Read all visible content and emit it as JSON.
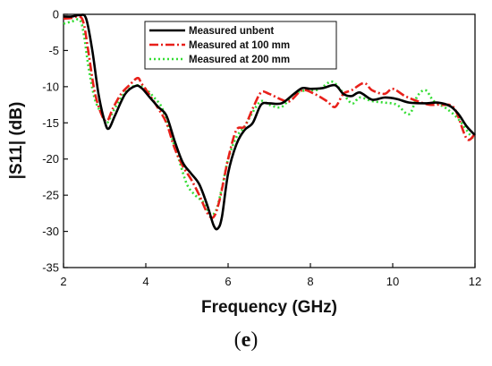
{
  "chart_data": {
    "type": "line",
    "xlabel": "Frequency (GHz)",
    "ylabel": "|S11| (dB)",
    "xlim": [
      2,
      12
    ],
    "ylim": [
      -35,
      0
    ],
    "x_ticks": [
      2,
      4,
      6,
      8,
      10,
      12
    ],
    "y_ticks": [
      0,
      -5,
      -10,
      -15,
      -20,
      -25,
      -30,
      -35
    ],
    "x_tick_labels": [
      "2",
      "4",
      "6",
      "8",
      "10",
      "12"
    ],
    "y_tick_labels": [
      "0",
      "-5",
      "-10",
      "-15",
      "-20",
      "-25",
      "-30",
      "-35"
    ],
    "grid": false,
    "legend_position": "top-center",
    "series": [
      {
        "name": "Measured unbent",
        "color": "#000000",
        "style": "solid",
        "points": [
          [
            2.0,
            -0.3
          ],
          [
            2.2,
            -0.3
          ],
          [
            2.4,
            -0.1
          ],
          [
            2.55,
            -0.6
          ],
          [
            2.7,
            -5
          ],
          [
            2.85,
            -11
          ],
          [
            3.0,
            -14.8
          ],
          [
            3.1,
            -15.8
          ],
          [
            3.25,
            -14
          ],
          [
            3.5,
            -11
          ],
          [
            3.75,
            -9.9
          ],
          [
            3.9,
            -10.2
          ],
          [
            4.1,
            -11.5
          ],
          [
            4.3,
            -12.8
          ],
          [
            4.5,
            -14
          ],
          [
            4.7,
            -17.5
          ],
          [
            4.9,
            -20.5
          ],
          [
            5.1,
            -22
          ],
          [
            5.3,
            -23.5
          ],
          [
            5.5,
            -26.5
          ],
          [
            5.65,
            -29.2
          ],
          [
            5.75,
            -29.6
          ],
          [
            5.85,
            -28
          ],
          [
            6.0,
            -22
          ],
          [
            6.2,
            -18
          ],
          [
            6.4,
            -16
          ],
          [
            6.6,
            -15
          ],
          [
            6.8,
            -12.5
          ],
          [
            7.0,
            -12.3
          ],
          [
            7.3,
            -12.3
          ],
          [
            7.6,
            -11
          ],
          [
            7.8,
            -10.2
          ],
          [
            8.0,
            -10.3
          ],
          [
            8.3,
            -10.2
          ],
          [
            8.6,
            -9.8
          ],
          [
            8.8,
            -11
          ],
          [
            9.0,
            -11.3
          ],
          [
            9.2,
            -10.8
          ],
          [
            9.5,
            -11.8
          ],
          [
            9.8,
            -11.5
          ],
          [
            10.1,
            -11.7
          ],
          [
            10.4,
            -12.2
          ],
          [
            10.8,
            -12.3
          ],
          [
            11.1,
            -12.2
          ],
          [
            11.4,
            -12.7
          ],
          [
            11.6,
            -13.8
          ],
          [
            11.8,
            -15.5
          ],
          [
            12.0,
            -16.7
          ]
        ]
      },
      {
        "name": "Measured at 100 mm",
        "color": "#e8201a",
        "style": "dashdot",
        "points": [
          [
            2.0,
            -0.6
          ],
          [
            2.2,
            -0.5
          ],
          [
            2.4,
            -0.3
          ],
          [
            2.5,
            -1.5
          ],
          [
            2.6,
            -5
          ],
          [
            2.75,
            -10.5
          ],
          [
            2.9,
            -13.5
          ],
          [
            3.05,
            -14.8
          ],
          [
            3.2,
            -13
          ],
          [
            3.4,
            -11
          ],
          [
            3.6,
            -9.8
          ],
          [
            3.8,
            -8.8
          ],
          [
            3.9,
            -9.6
          ],
          [
            4.1,
            -11.2
          ],
          [
            4.3,
            -13
          ],
          [
            4.5,
            -15
          ],
          [
            4.7,
            -18.5
          ],
          [
            4.9,
            -21
          ],
          [
            5.1,
            -22.8
          ],
          [
            5.3,
            -25
          ],
          [
            5.5,
            -27.5
          ],
          [
            5.65,
            -28
          ],
          [
            5.8,
            -25.5
          ],
          [
            6.0,
            -20
          ],
          [
            6.2,
            -16
          ],
          [
            6.4,
            -15.5
          ],
          [
            6.6,
            -13
          ],
          [
            6.8,
            -10.8
          ],
          [
            7.0,
            -11
          ],
          [
            7.3,
            -11.8
          ],
          [
            7.5,
            -12
          ],
          [
            7.8,
            -10.5
          ],
          [
            8.1,
            -11
          ],
          [
            8.4,
            -12
          ],
          [
            8.6,
            -12.8
          ],
          [
            8.8,
            -11
          ],
          [
            9.0,
            -10.5
          ],
          [
            9.3,
            -9.5
          ],
          [
            9.5,
            -10.5
          ],
          [
            9.8,
            -11
          ],
          [
            10.0,
            -10.3
          ],
          [
            10.3,
            -11.3
          ],
          [
            10.6,
            -12
          ],
          [
            10.9,
            -12.5
          ],
          [
            11.2,
            -12.5
          ],
          [
            11.5,
            -13
          ],
          [
            11.8,
            -17.2
          ],
          [
            12.0,
            -16.5
          ]
        ]
      },
      {
        "name": "Measured at 200 mm",
        "color": "#33dd33",
        "style": "dotted",
        "points": [
          [
            2.0,
            -1.3
          ],
          [
            2.2,
            -1.0
          ],
          [
            2.4,
            -0.8
          ],
          [
            2.5,
            -3
          ],
          [
            2.6,
            -7
          ],
          [
            2.75,
            -11.5
          ],
          [
            2.9,
            -13.5
          ],
          [
            3.05,
            -15
          ],
          [
            3.2,
            -13.5
          ],
          [
            3.4,
            -11.5
          ],
          [
            3.6,
            -10.3
          ],
          [
            3.8,
            -9.8
          ],
          [
            4.0,
            -10.3
          ],
          [
            4.2,
            -11.5
          ],
          [
            4.4,
            -13
          ],
          [
            4.6,
            -16.5
          ],
          [
            4.8,
            -20
          ],
          [
            5.0,
            -23.5
          ],
          [
            5.2,
            -25
          ],
          [
            5.4,
            -26
          ],
          [
            5.55,
            -27.5
          ],
          [
            5.7,
            -27.2
          ],
          [
            5.85,
            -24
          ],
          [
            6.0,
            -20
          ],
          [
            6.2,
            -17
          ],
          [
            6.4,
            -15.5
          ],
          [
            6.6,
            -13.5
          ],
          [
            6.8,
            -12
          ],
          [
            7.0,
            -12.5
          ],
          [
            7.3,
            -12.8
          ],
          [
            7.6,
            -11
          ],
          [
            7.9,
            -10.5
          ],
          [
            8.2,
            -10.4
          ],
          [
            8.5,
            -9.3
          ],
          [
            8.7,
            -10.2
          ],
          [
            9.0,
            -12.3
          ],
          [
            9.2,
            -11.5
          ],
          [
            9.5,
            -12
          ],
          [
            9.8,
            -12.2
          ],
          [
            10.1,
            -12.5
          ],
          [
            10.4,
            -13.8
          ],
          [
            10.6,
            -11.3
          ],
          [
            10.8,
            -10.5
          ],
          [
            11.0,
            -12
          ],
          [
            11.3,
            -13
          ],
          [
            11.6,
            -14.5
          ],
          [
            11.9,
            -16.8
          ],
          [
            12.0,
            -17
          ]
        ]
      }
    ]
  },
  "caption": {
    "open": "(",
    "letter": "e",
    "close": ")"
  }
}
